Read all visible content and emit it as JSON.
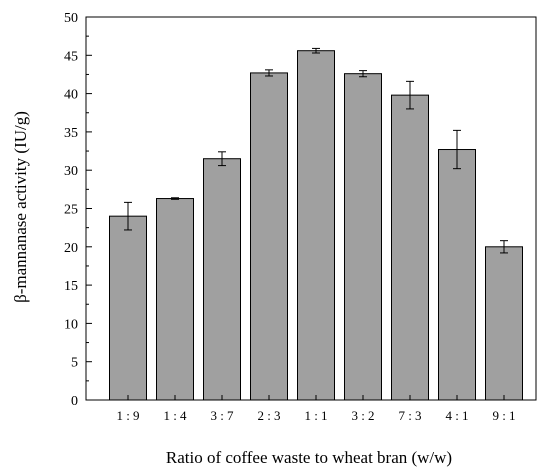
{
  "chart_data": {
    "type": "bar",
    "title": "",
    "xlabel": "Ratio of coffee waste to wheat bran (w/w)",
    "ylabel": "β-mannanase activity (IU/g)",
    "categories": [
      "1 : 9",
      "1 : 4",
      "3 : 7",
      "2 : 3",
      "1 : 1",
      "3 : 2",
      "7 : 3",
      "4 : 1",
      "9 : 1"
    ],
    "values": [
      24.0,
      26.3,
      31.5,
      42.7,
      45.6,
      42.6,
      39.8,
      32.7,
      20.0
    ],
    "errors": [
      1.8,
      0.1,
      0.9,
      0.4,
      0.3,
      0.4,
      1.8,
      2.5,
      0.8
    ],
    "ylim": [
      0,
      50
    ],
    "yticks": [
      0,
      5,
      10,
      15,
      20,
      25,
      30,
      35,
      40,
      45,
      50
    ],
    "bar_color": "#a0a0a0",
    "bar_edge_color": "#000000",
    "grid": false,
    "legend": "none"
  }
}
